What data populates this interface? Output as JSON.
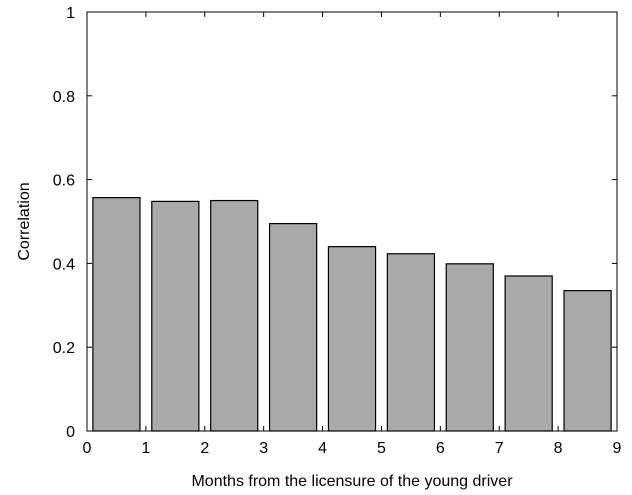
{
  "chart_data": {
    "type": "bar",
    "title": "",
    "xlabel": "Months from the licensure of the young driver",
    "ylabel": "Correlation",
    "xlim": [
      0,
      9
    ],
    "ylim": [
      0,
      1
    ],
    "x": [
      0.5,
      1.5,
      2.5,
      3.5,
      4.5,
      5.5,
      6.5,
      7.5,
      8.5
    ],
    "values": [
      0.557,
      0.548,
      0.55,
      0.495,
      0.44,
      0.423,
      0.399,
      0.37,
      0.335
    ],
    "bar_color": "#a9a9a9",
    "x_ticks": [
      0,
      1,
      2,
      3,
      4,
      5,
      6,
      7,
      8,
      9
    ],
    "x_tick_labels": [
      "0",
      "1",
      "2",
      "3",
      "4",
      "5",
      "6",
      "7",
      "8",
      "9"
    ],
    "y_ticks": [
      0,
      0.2,
      0.4,
      0.6,
      0.8,
      1
    ],
    "y_tick_labels": [
      "0",
      "0.2",
      "0.4",
      "0.6",
      "0.8",
      "1"
    ],
    "grid": false
  }
}
